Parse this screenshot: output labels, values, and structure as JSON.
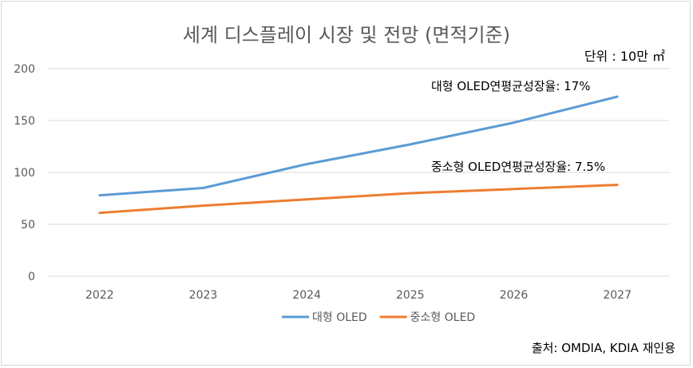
{
  "chart_data": {
    "type": "line",
    "title": "세계 디스플레이 시장 및 전망 (면적기준)",
    "unit_label": "단위 : 10만 ㎡",
    "categories": [
      "2022",
      "2023",
      "2024",
      "2025",
      "2026",
      "2027"
    ],
    "series": [
      {
        "name": "대형 OLED",
        "values": [
          78,
          85,
          108,
          127,
          148,
          173
        ],
        "color": "#5b9bd5"
      },
      {
        "name": "중소형 OLED",
        "values": [
          61,
          68,
          74,
          80,
          84,
          88
        ],
        "color": "#ed7d31"
      }
    ],
    "ylim": [
      0,
      200
    ],
    "yticks": [
      0,
      50,
      100,
      150,
      200
    ],
    "grid": true,
    "legend_position": "bottom",
    "annotations": [
      {
        "text": "대형 OLED연평균성장율: 17%"
      },
      {
        "text": "중소형 OLED연평균성장율: 7.5%"
      }
    ],
    "source": "출처: OMDIA, KDIA 재인용"
  }
}
